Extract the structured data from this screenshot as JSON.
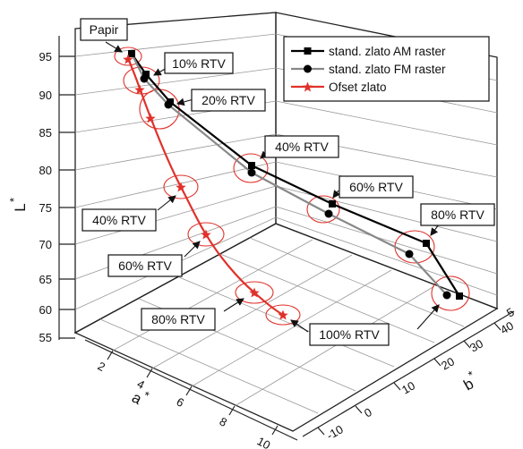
{
  "chart_data": {
    "type": "line-3d",
    "title": "",
    "axes": {
      "z": {
        "label": "L",
        "label_superscript": "*",
        "ticks": [
          "55",
          "60",
          "65",
          "70",
          "75",
          "80",
          "85",
          "90",
          "95"
        ],
        "range": [
          55,
          98
        ]
      },
      "a": {
        "label": "a",
        "label_superscript": "*",
        "ticks": [
          "2",
          "4",
          "6",
          "8",
          "10"
        ],
        "range": [
          0,
          10
        ]
      },
      "b": {
        "label": "b",
        "label_superscript": "*",
        "ticks": [
          "-10",
          "0",
          "10",
          "20",
          "30",
          "40",
          "5"
        ],
        "range": [
          -10,
          50
        ]
      }
    },
    "grid": true,
    "legend": {
      "placement": "top-right",
      "entries": [
        {
          "name": "stand. zlato AM raster",
          "color": "#000000",
          "marker": "square"
        },
        {
          "name": "stand. zlato FM raster",
          "color": "#777777",
          "marker": "circle"
        },
        {
          "name": "Ofset zlato",
          "color": "#e0312b",
          "marker": "star"
        }
      ]
    },
    "series": [
      {
        "name": "stand. zlato AM raster",
        "points": [
          {
            "rtv": "Papir",
            "a": 1.5,
            "b": 6,
            "L": 95
          },
          {
            "rtv": "10% RTV",
            "a": 1.8,
            "b": 6.5,
            "L": 93
          },
          {
            "rtv": "20% RTV",
            "a": 2.2,
            "b": 9,
            "L": 89.5
          },
          {
            "rtv": "40% RTV",
            "a": 3,
            "b": 18,
            "L": 80
          },
          {
            "rtv": "60% RTV",
            "a": 3.8,
            "b": 27,
            "L": 74.5
          },
          {
            "rtv": "80% RTV",
            "a": 4.5,
            "b": 36,
            "L": 69
          },
          {
            "rtv": "100% RTV",
            "a": 4.8,
            "b": 40,
            "L": 61
          }
        ]
      },
      {
        "name": "stand. zlato FM raster",
        "points": [
          {
            "rtv": "Papir",
            "a": 1.5,
            "b": 6,
            "L": 95
          },
          {
            "rtv": "10% RTV",
            "a": 1.8,
            "b": 6.5,
            "L": 92.5
          },
          {
            "rtv": "20% RTV",
            "a": 2.2,
            "b": 9,
            "L": 89
          },
          {
            "rtv": "40% RTV",
            "a": 3,
            "b": 17.5,
            "L": 79
          },
          {
            "rtv": "60% RTV",
            "a": 3.8,
            "b": 26,
            "L": 73
          },
          {
            "rtv": "80% RTV",
            "a": 4.5,
            "b": 34,
            "L": 67
          },
          {
            "rtv": "100% RTV",
            "a": 4.8,
            "b": 38,
            "L": 61
          }
        ]
      },
      {
        "name": "Ofset zlato",
        "points": [
          {
            "rtv": "Papir",
            "a": 1.5,
            "b": 6,
            "L": 95
          },
          {
            "rtv": "10% RTV",
            "a": 2,
            "b": 5,
            "L": 91
          },
          {
            "rtv": "20% RTV",
            "a": 2.8,
            "b": 4,
            "L": 86.5
          },
          {
            "rtv": "40% RTV",
            "a": 4.5,
            "b": 1,
            "L": 78
          },
          {
            "rtv": "60% RTV",
            "a": 6,
            "b": -1,
            "L": 71
          },
          {
            "rtv": "80% RTV",
            "a": 7.5,
            "b": -3,
            "L": 63
          },
          {
            "rtv": "100% RTV",
            "a": 8.5,
            "b": -4,
            "L": 58
          }
        ]
      }
    ],
    "annotations": [
      "Papir",
      "10% RTV",
      "20% RTV",
      "40% RTV",
      "60% RTV",
      "80% RTV",
      "40% RTV",
      "60% RTV",
      "80% RTV",
      "100% RTV"
    ]
  }
}
